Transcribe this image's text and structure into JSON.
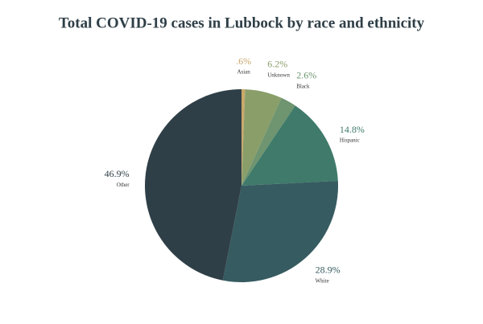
{
  "chart_data": {
    "type": "pie",
    "title": "Total COVID-19 cases in Lubbock by race and ethnicity",
    "categories": [
      "Asian",
      "Unknown",
      "Black",
      "Hispanic",
      "White",
      "Other"
    ],
    "values": [
      0.6,
      6.2,
      2.6,
      14.8,
      28.9,
      46.9
    ],
    "value_labels": [
      ".6%",
      "6.2%",
      "2.6%",
      "14.8%",
      "28.9%",
      "46.9%"
    ],
    "colors": [
      "#c9a86b",
      "#8a9e6a",
      "#6e9470",
      "#3f7a6a",
      "#365b60",
      "#2f3f47"
    ]
  }
}
